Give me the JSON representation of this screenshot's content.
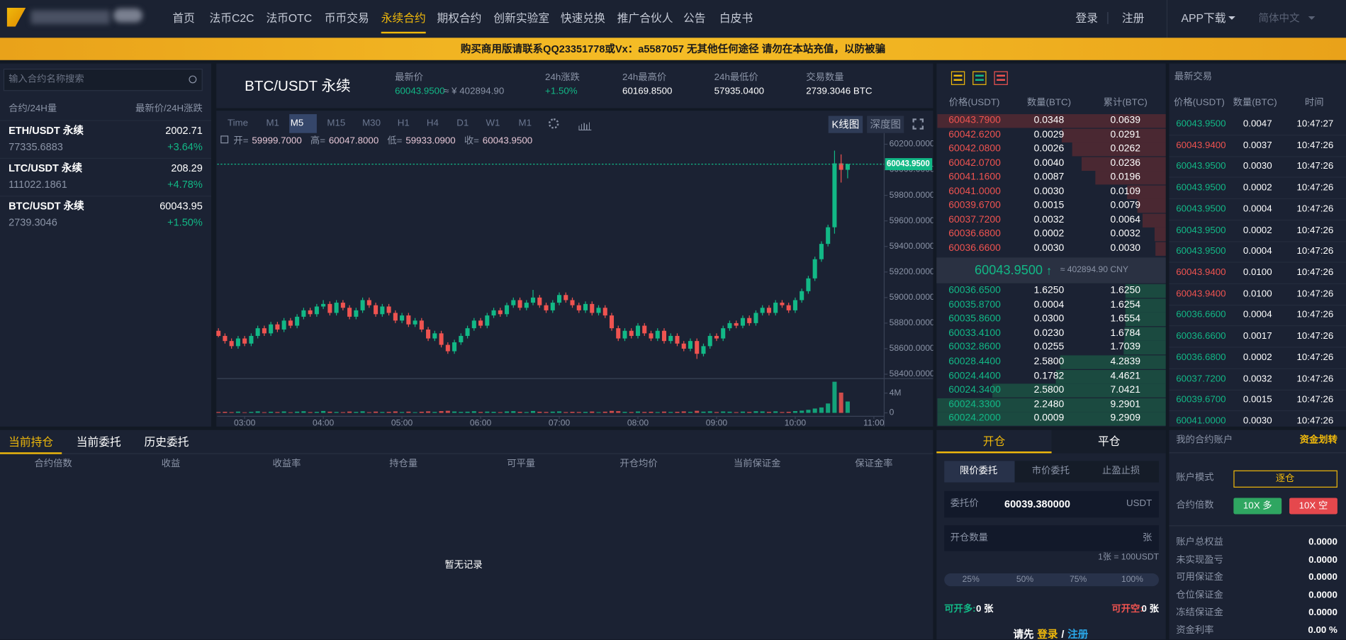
{
  "nav": {
    "items": [
      "首页",
      "法币C2C",
      "法币OTC",
      "币币交易",
      "永续合约",
      "期权合约",
      "创新实验室",
      "快速兑换",
      "推广合伙人",
      "公告",
      "白皮书"
    ],
    "active": 4,
    "login": "登录",
    "register": "注册",
    "app": "APP下载",
    "language": "简体中文"
  },
  "banner": "购买商用版请联系QQ23351778或Vx：a5587057 无其他任何途径 请勿在本站充值，以防被骗",
  "markets": {
    "search_placeholder": "输入合约名称搜索",
    "header_left": "合约/24H量",
    "header_right": "最新价/24H涨跌",
    "rows": [
      {
        "name": "ETH/USDT 永续",
        "price": "2002.71",
        "volume": "77335.6883",
        "change": "+3.64%"
      },
      {
        "name": "LTC/USDT 永续",
        "price": "208.29",
        "volume": "111022.1861",
        "change": "+4.78%"
      },
      {
        "name": "BTC/USDT 永续",
        "price": "60043.95",
        "volume": "2739.3046",
        "change": "+1.50%"
      }
    ]
  },
  "ticker": {
    "symbol": "BTC/USDT 永续",
    "last_label": "最新价",
    "last": "60043.9500",
    "last_cny": "≈ ¥ 402894.90",
    "change_label": "24h涨跌",
    "change": "+1.50%",
    "high_label": "24h最高价",
    "high": "60169.8500",
    "low_label": "24h最低价",
    "low": "57935.0400",
    "volume_label": "交易数量",
    "volume": "2739.3046 BTC"
  },
  "chart_toolbar": {
    "intervals": [
      "Time",
      "M1",
      "M5",
      "M15",
      "M30",
      "H1",
      "H4",
      "D1",
      "W1",
      "M1"
    ],
    "active": 2,
    "views": [
      "K线图",
      "深度图"
    ],
    "active_view": 0
  },
  "chart_readout": [
    [
      "开=",
      "59999.7000"
    ],
    [
      "高=",
      "60047.8000"
    ],
    [
      "低=",
      "59933.0900"
    ],
    [
      "收=",
      "60043.9500"
    ]
  ],
  "chart_data": {
    "type": "candlestick",
    "up_color": "#12b886",
    "down_color": "#ef5350",
    "x": [
      "02:40",
      "02:45",
      "02:50",
      "02:55",
      "03:00",
      "03:05",
      "03:10",
      "03:15",
      "03:20",
      "03:25",
      "03:30",
      "03:35",
      "03:40",
      "03:45",
      "03:50",
      "03:55",
      "04:00",
      "04:05",
      "04:10",
      "04:15",
      "04:20",
      "04:25",
      "04:30",
      "04:35",
      "04:40",
      "04:45",
      "04:50",
      "04:55",
      "05:00",
      "05:05",
      "05:10",
      "05:15",
      "05:20",
      "05:25",
      "05:30",
      "05:35",
      "05:40",
      "05:45",
      "05:50",
      "05:55",
      "06:00",
      "06:05",
      "06:10",
      "06:15",
      "06:20",
      "06:25",
      "06:30",
      "06:35",
      "06:40",
      "06:45",
      "06:50",
      "06:55",
      "07:00",
      "07:05",
      "07:10",
      "07:15",
      "07:20",
      "07:25",
      "07:30",
      "07:35",
      "07:40",
      "07:45",
      "07:50",
      "07:55",
      "08:00",
      "08:05",
      "08:10",
      "08:15",
      "08:20",
      "08:25",
      "08:30",
      "08:35",
      "08:40",
      "08:45",
      "08:50",
      "08:55",
      "09:00",
      "09:05",
      "09:10",
      "09:15",
      "09:20",
      "09:25",
      "09:30",
      "09:35",
      "09:40",
      "09:45",
      "09:50",
      "09:55",
      "10:00",
      "10:05",
      "10:10",
      "10:15",
      "10:20",
      "10:25",
      "10:30",
      "10:35",
      "10:40"
    ],
    "ohlc": [
      [
        58740,
        58760,
        58690,
        58700
      ],
      [
        58700,
        58720,
        58640,
        58660
      ],
      [
        58660,
        58680,
        58600,
        58620
      ],
      [
        58620,
        58700,
        58600,
        58680
      ],
      [
        58680,
        58700,
        58620,
        58640
      ],
      [
        58640,
        58720,
        58620,
        58700
      ],
      [
        58700,
        58780,
        58680,
        58760
      ],
      [
        58760,
        58780,
        58700,
        58720
      ],
      [
        58720,
        58810,
        58700,
        58790
      ],
      [
        58790,
        58810,
        58730,
        58750
      ],
      [
        58750,
        58840,
        58730,
        58820
      ],
      [
        58820,
        58840,
        58760,
        58780
      ],
      [
        58780,
        58870,
        58760,
        58850
      ],
      [
        58850,
        58920,
        58830,
        58900
      ],
      [
        58900,
        58920,
        58850,
        58870
      ],
      [
        58870,
        58950,
        58850,
        58930
      ],
      [
        58930,
        58980,
        58910,
        58950
      ],
      [
        58950,
        58970,
        58860,
        58880
      ],
      [
        58880,
        58980,
        58860,
        58960
      ],
      [
        58960,
        58980,
        58900,
        58920
      ],
      [
        58920,
        58940,
        58830,
        58850
      ],
      [
        58850,
        58920,
        58830,
        58900
      ],
      [
        58900,
        59000,
        58880,
        58980
      ],
      [
        58980,
        59000,
        58920,
        58940
      ],
      [
        58940,
        58960,
        58850,
        58870
      ],
      [
        58870,
        58950,
        58850,
        58930
      ],
      [
        58930,
        58950,
        58860,
        58880
      ],
      [
        58880,
        58900,
        58800,
        58820
      ],
      [
        58820,
        58880,
        58800,
        58860
      ],
      [
        58860,
        58880,
        58770,
        58790
      ],
      [
        58790,
        58840,
        58770,
        58820
      ],
      [
        58820,
        58840,
        58730,
        58750
      ],
      [
        58750,
        58770,
        58660,
        58680
      ],
      [
        58680,
        58740,
        58660,
        58720
      ],
      [
        58720,
        58740,
        58610,
        58630
      ],
      [
        58630,
        58650,
        58560,
        58580
      ],
      [
        58580,
        58670,
        58560,
        58650
      ],
      [
        58650,
        58720,
        58630,
        58700
      ],
      [
        58700,
        58780,
        58680,
        58760
      ],
      [
        58760,
        58840,
        58740,
        58820
      ],
      [
        58820,
        58840,
        58760,
        58780
      ],
      [
        58780,
        58880,
        58760,
        58860
      ],
      [
        58860,
        58920,
        58840,
        58900
      ],
      [
        58900,
        58920,
        58850,
        58870
      ],
      [
        58870,
        58960,
        58850,
        58940
      ],
      [
        58940,
        59000,
        58920,
        58980
      ],
      [
        58980,
        59000,
        58900,
        58920
      ],
      [
        58920,
        58980,
        58900,
        58960
      ],
      [
        58960,
        59060,
        58940,
        59000
      ],
      [
        59000,
        59020,
        58920,
        58940
      ],
      [
        58940,
        58960,
        58880,
        58900
      ],
      [
        58900,
        58980,
        58880,
        58960
      ],
      [
        58960,
        59040,
        58940,
        59020
      ],
      [
        59020,
        59040,
        58960,
        58980
      ],
      [
        58980,
        59000,
        58920,
        58940
      ],
      [
        58940,
        58960,
        58880,
        58900
      ],
      [
        58900,
        58970,
        58880,
        58950
      ],
      [
        58950,
        58970,
        58860,
        58880
      ],
      [
        58880,
        58940,
        58860,
        58920
      ],
      [
        58920,
        58940,
        58840,
        58860
      ],
      [
        58860,
        58880,
        58740,
        58760
      ],
      [
        58760,
        58780,
        58660,
        58680
      ],
      [
        58680,
        58760,
        58660,
        58740
      ],
      [
        58740,
        58760,
        58680,
        58700
      ],
      [
        58700,
        58800,
        58680,
        58780
      ],
      [
        58780,
        58800,
        58700,
        58720
      ],
      [
        58720,
        58740,
        58660,
        58680
      ],
      [
        58680,
        58760,
        58660,
        58740
      ],
      [
        58740,
        58760,
        58640,
        58660
      ],
      [
        58660,
        58720,
        58640,
        58700
      ],
      [
        58700,
        58720,
        58620,
        58640
      ],
      [
        58640,
        58660,
        58580,
        58600
      ],
      [
        58600,
        58680,
        58580,
        58660
      ],
      [
        58660,
        58680,
        58520,
        58560
      ],
      [
        58560,
        58640,
        58540,
        58620
      ],
      [
        58620,
        58720,
        58600,
        58700
      ],
      [
        58700,
        58720,
        58660,
        58680
      ],
      [
        58680,
        58780,
        58660,
        58760
      ],
      [
        58760,
        58820,
        58740,
        58800
      ],
      [
        58800,
        58820,
        58760,
        58780
      ],
      [
        58780,
        58860,
        58760,
        58840
      ],
      [
        58840,
        58860,
        58780,
        58800
      ],
      [
        58800,
        58900,
        58780,
        58880
      ],
      [
        58880,
        58940,
        58860,
        58920
      ],
      [
        58920,
        58940,
        58860,
        58880
      ],
      [
        58880,
        58980,
        58860,
        58960
      ],
      [
        58960,
        58980,
        58920,
        58940
      ],
      [
        58940,
        58960,
        58880,
        58900
      ],
      [
        58900,
        59000,
        58880,
        58980
      ],
      [
        58980,
        59070,
        58960,
        59050
      ],
      [
        59050,
        59170,
        59030,
        59150
      ],
      [
        59150,
        59320,
        59130,
        59300
      ],
      [
        59300,
        59440,
        59280,
        59420
      ],
      [
        59420,
        59570,
        59400,
        59550
      ],
      [
        59550,
        60150,
        59500,
        60050
      ],
      [
        60050,
        60120,
        59900,
        59999.7
      ],
      [
        59999.7,
        60047.8,
        59933.09,
        60043.95
      ]
    ],
    "volume": [
      180000,
      220000,
      150000,
      260000,
      120000,
      200000,
      310000,
      140000,
      230000,
      170000,
      290000,
      130000,
      250000,
      330000,
      160000,
      210000,
      380000,
      240000,
      190000,
      150000,
      270000,
      200000,
      320000,
      140000,
      260000,
      180000,
      210000,
      300000,
      170000,
      250000,
      140000,
      230000,
      310000,
      190000,
      360000,
      420000,
      280000,
      200000,
      240000,
      330000,
      180000,
      260000,
      220000,
      150000,
      290000,
      340000,
      210000,
      170000,
      380000,
      230000,
      190000,
      250000,
      300000,
      160000,
      220000,
      180000,
      200000,
      270000,
      150000,
      240000,
      400000,
      350000,
      210000,
      170000,
      280000,
      190000,
      230000,
      160000,
      260000,
      180000,
      220000,
      300000,
      200000,
      420000,
      250000,
      310000,
      170000,
      280000,
      240000,
      150000,
      260000,
      190000,
      330000,
      290000,
      200000,
      310000,
      170000,
      220000,
      360000,
      450000,
      620000,
      880000,
      1100000,
      1900000,
      6300000,
      4100000,
      2300000
    ],
    "ylim": [
      58400,
      60200
    ],
    "yticks": [
      {
        "value": 60200,
        "label": "60200.0000"
      },
      {
        "value": 60000,
        "label": "60000.0000"
      },
      {
        "value": 59800,
        "label": "59800.0000"
      },
      {
        "value": 59600,
        "label": "59600.0000"
      },
      {
        "value": 59400,
        "label": "59400.0000"
      },
      {
        "value": 59200,
        "label": "59200.0000"
      },
      {
        "value": 59000,
        "label": "59000.0000"
      },
      {
        "value": 58800,
        "label": "58800.0000"
      },
      {
        "value": 58600,
        "label": "58600.0000"
      },
      {
        "value": 58400,
        "label": "58400.0000"
      }
    ],
    "xticks": [
      "03:00",
      "04:00",
      "05:00",
      "06:00",
      "07:00",
      "08:00",
      "09:00",
      "10:00",
      "11:00"
    ],
    "volume_ylim": [
      0,
      6600000
    ],
    "volume_yticks": [
      {
        "value": 4000000,
        "label": "4M"
      },
      0
    ],
    "last_price": {
      "value": 60043.95,
      "label": "60043.9500"
    }
  },
  "orderbook": {
    "headers": [
      "价格(USDT)",
      "数量(BTC)",
      "累计(BTC)"
    ],
    "asks": [
      [
        "60043.7900",
        "0.0348",
        "0.0639"
      ],
      [
        "60042.6200",
        "0.0029",
        "0.0291"
      ],
      [
        "60042.0800",
        "0.0026",
        "0.0262"
      ],
      [
        "60042.0700",
        "0.0040",
        "0.0236"
      ],
      [
        "60041.1600",
        "0.0087",
        "0.0196"
      ],
      [
        "60041.0000",
        "0.0030",
        "0.0109"
      ],
      [
        "60039.6700",
        "0.0015",
        "0.0079"
      ],
      [
        "60037.7200",
        "0.0032",
        "0.0064"
      ],
      [
        "60036.6800",
        "0.0002",
        "0.0032"
      ],
      [
        "60036.6600",
        "0.0030",
        "0.0030"
      ]
    ],
    "mid_price": "60043.9500",
    "mid_arrow": "↑",
    "mid_cny": "≈ 402894.90 CNY",
    "bids": [
      [
        "60036.6500",
        "1.6250",
        "1.6250"
      ],
      [
        "60035.8700",
        "0.0004",
        "1.6254"
      ],
      [
        "60035.8600",
        "0.0300",
        "1.6554"
      ],
      [
        "60033.4100",
        "0.0230",
        "1.6784"
      ],
      [
        "60032.8600",
        "0.0255",
        "1.7039"
      ],
      [
        "60028.4400",
        "2.5800",
        "4.2839"
      ],
      [
        "60024.4400",
        "0.1782",
        "4.4621"
      ],
      [
        "60024.3400",
        "2.5800",
        "7.0421"
      ],
      [
        "60024.3300",
        "2.2480",
        "9.2901"
      ],
      [
        "60024.2000",
        "0.0009",
        "9.2909"
      ]
    ]
  },
  "trades": {
    "title": "最新交易",
    "headers": [
      "价格(USDT)",
      "数量(BTC)",
      "时间"
    ],
    "rows": [
      {
        "price": "60043.9500",
        "qty": "0.0047",
        "time": "10:47:27",
        "side": "buy"
      },
      {
        "price": "60043.9400",
        "qty": "0.0037",
        "time": "10:47:26",
        "side": "sell"
      },
      {
        "price": "60043.9500",
        "qty": "0.0030",
        "time": "10:47:26",
        "side": "buy"
      },
      {
        "price": "60043.9500",
        "qty": "0.0002",
        "time": "10:47:26",
        "side": "buy"
      },
      {
        "price": "60043.9500",
        "qty": "0.0004",
        "time": "10:47:26",
        "side": "buy"
      },
      {
        "price": "60043.9500",
        "qty": "0.0002",
        "time": "10:47:26",
        "side": "buy"
      },
      {
        "price": "60043.9500",
        "qty": "0.0004",
        "time": "10:47:26",
        "side": "buy"
      },
      {
        "price": "60043.9400",
        "qty": "0.0100",
        "time": "10:47:26",
        "side": "sell"
      },
      {
        "price": "60043.9400",
        "qty": "0.0100",
        "time": "10:47:26",
        "side": "sell"
      },
      {
        "price": "60036.6600",
        "qty": "0.0004",
        "time": "10:47:26",
        "side": "buy"
      },
      {
        "price": "60036.6600",
        "qty": "0.0017",
        "time": "10:47:26",
        "side": "buy"
      },
      {
        "price": "60036.6800",
        "qty": "0.0002",
        "time": "10:47:26",
        "side": "buy"
      },
      {
        "price": "60037.7200",
        "qty": "0.0032",
        "time": "10:47:26",
        "side": "buy"
      },
      {
        "price": "60039.6700",
        "qty": "0.0015",
        "time": "10:47:26",
        "side": "buy"
      },
      {
        "price": "60041.0000",
        "qty": "0.0030",
        "time": "10:47:26",
        "side": "buy"
      }
    ]
  },
  "positions": {
    "tabs": [
      "当前持仓",
      "当前委托",
      "历史委托"
    ],
    "active": 0,
    "columns": [
      "合约倍数",
      "收益",
      "收益率",
      "持仓量",
      "可平量",
      "开仓均价",
      "当前保证金",
      "保证金率"
    ],
    "empty": "暂无记录"
  },
  "order_form": {
    "tabs": [
      "开仓",
      "平仓"
    ],
    "active_tab": 0,
    "types": [
      "限价委托",
      "市价委托",
      "止盈止损"
    ],
    "active_type": 0,
    "price_label": "委托价",
    "price": "60039.380000",
    "price_unit": "USDT",
    "amount_label": "开仓数量",
    "amount_unit": "张",
    "contract_note": "1张 = 100USDT",
    "percents": [
      "25%",
      "50%",
      "75%",
      "100%"
    ],
    "long_label": "可开多:",
    "long_value": "0 张",
    "short_label": "可开空:",
    "short_value": "0 张",
    "login_prefix": "请先",
    "login": "登录",
    "separator": "/",
    "register": "注册"
  },
  "account": {
    "title": "我的合约账户",
    "transfer": "资金划转",
    "mode_label": "账户模式",
    "mode": "逐仓",
    "leverage_label": "合约倍数",
    "long": "10X 多",
    "short": "10X 空",
    "rows": [
      [
        "账户总权益",
        "0.0000"
      ],
      [
        "未实现盈亏",
        "0.0000"
      ],
      [
        "可用保证金",
        "0.0000"
      ],
      [
        "仓位保证金",
        "0.0000"
      ],
      [
        "冻结保证金",
        "0.0000"
      ],
      [
        "资金利率",
        "0.00 %"
      ]
    ]
  }
}
